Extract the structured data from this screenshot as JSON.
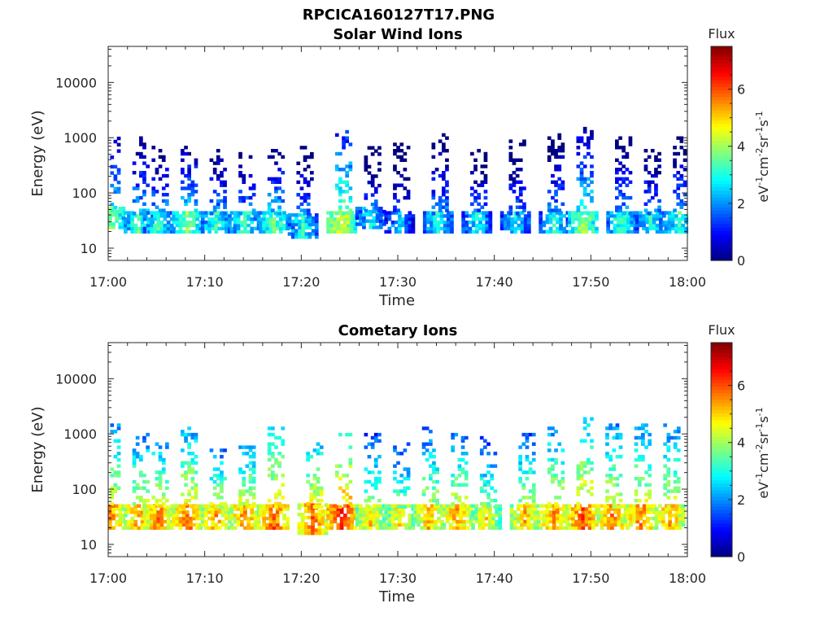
{
  "figure": {
    "title": "RPCICA160127T17.PNG"
  },
  "colorscale": [
    "#00007f",
    "#0000ff",
    "#007fff",
    "#00ffff",
    "#7fff7f",
    "#ffff00",
    "#ff7f00",
    "#ff0000",
    "#7f0000"
  ],
  "chart_data": [
    {
      "type": "heatmap",
      "title": "Solar Wind Ions",
      "xlabel": "Time",
      "ylabel": "Energy (eV)",
      "yscale": "log",
      "ylim": [
        6,
        45000
      ],
      "xlim": [
        "17:00",
        "18:00"
      ],
      "xticks": [
        "17:00",
        "17:10",
        "17:20",
        "17:30",
        "17:40",
        "17:50",
        "18:00"
      ],
      "yticks": [
        10,
        100,
        1000,
        10000
      ],
      "ytick_labels": [
        "10",
        "100",
        "1000",
        "10000"
      ],
      "colorbar": {
        "title": "Flux",
        "label": "eV-1cm-2sr-1s-1",
        "range": [
          0,
          7.5
        ],
        "ticks": [
          0,
          2,
          4,
          6
        ]
      },
      "bursts": [
        {
          "t": "17:00",
          "low": [
            30,
            45
          ],
          "high": [
            700,
            1100
          ],
          "flux": 4.5
        },
        {
          "t": "17:03",
          "low": [
            25,
            40
          ],
          "high": [
            300,
            1000
          ],
          "flux": 4.0
        },
        {
          "t": "17:05",
          "low": [
            25,
            40
          ],
          "high": [
            250,
            800
          ],
          "flux": 3.8
        },
        {
          "t": "17:08",
          "low": [
            25,
            40
          ],
          "high": [
            250,
            700
          ],
          "flux": 4.3
        },
        {
          "t": "17:11",
          "low": [
            25,
            40
          ],
          "high": [
            200,
            600
          ],
          "flux": 3.8
        },
        {
          "t": "17:14",
          "low": [
            25,
            40
          ],
          "high": [
            200,
            500
          ],
          "flux": 3.8
        },
        {
          "t": "17:17",
          "low": [
            25,
            40
          ],
          "high": [
            250,
            600
          ],
          "flux": 4.2
        },
        {
          "t": "17:20",
          "low": [
            20,
            35
          ],
          "high": [
            200,
            700
          ],
          "flux": 3.6
        },
        {
          "t": "17:24",
          "low": [
            25,
            40
          ],
          "high": [
            300,
            1500
          ],
          "flux": 5.2
        },
        {
          "t": "17:27",
          "low": [
            30,
            45
          ],
          "high": [
            250,
            700
          ],
          "flux": 3.4
        },
        {
          "t": "17:30",
          "low": [
            25,
            40
          ],
          "high": [
            200,
            800
          ],
          "flux": 3.0
        },
        {
          "t": "17:34",
          "low": [
            25,
            40
          ],
          "high": [
            300,
            1200
          ],
          "flux": 3.6
        },
        {
          "t": "17:38",
          "low": [
            25,
            40
          ],
          "high": [
            200,
            600
          ],
          "flux": 3.4
        },
        {
          "t": "17:42",
          "low": [
            25,
            40
          ],
          "high": [
            300,
            900
          ],
          "flux": 3.4
        },
        {
          "t": "17:46",
          "low": [
            25,
            40
          ],
          "high": [
            300,
            1200
          ],
          "flux": 3.6
        },
        {
          "t": "17:49",
          "low": [
            25,
            40
          ],
          "high": [
            300,
            1400
          ],
          "flux": 4.6
        },
        {
          "t": "17:53",
          "low": [
            25,
            40
          ],
          "high": [
            300,
            1000
          ],
          "flux": 3.8
        },
        {
          "t": "17:56",
          "low": [
            25,
            40
          ],
          "high": [
            300,
            700
          ],
          "flux": 3.6
        },
        {
          "t": "17:59",
          "low": [
            25,
            40
          ],
          "high": [
            300,
            1000
          ],
          "flux": 3.8
        }
      ]
    },
    {
      "type": "heatmap",
      "title": "Cometary Ions",
      "xlabel": "Time",
      "ylabel": "Energy (eV)",
      "yscale": "log",
      "ylim": [
        6,
        45000
      ],
      "xlim": [
        "17:00",
        "18:00"
      ],
      "xticks": [
        "17:00",
        "17:10",
        "17:20",
        "17:30",
        "17:40",
        "17:50",
        "18:00"
      ],
      "yticks": [
        10,
        100,
        1000,
        10000
      ],
      "ytick_labels": [
        "10",
        "100",
        "1000",
        "10000"
      ],
      "colorbar": {
        "title": "Flux",
        "label": "eV-1cm-2sr-1s-1",
        "range": [
          0,
          7.5
        ],
        "ticks": [
          0,
          2,
          4,
          6
        ]
      },
      "bursts": [
        {
          "t": "17:00",
          "low": [
            25,
            45
          ],
          "high": [
            150,
            1500
          ],
          "flux": 6.2
        },
        {
          "t": "17:03",
          "low": [
            25,
            45
          ],
          "high": [
            200,
            1000
          ],
          "flux": 6.0
        },
        {
          "t": "17:05",
          "low": [
            25,
            45
          ],
          "high": [
            200,
            800
          ],
          "flux": 6.2
        },
        {
          "t": "17:08",
          "low": [
            25,
            45
          ],
          "high": [
            250,
            1200
          ],
          "flux": 6.4
        },
        {
          "t": "17:11",
          "low": [
            25,
            45
          ],
          "high": [
            200,
            500
          ],
          "flux": 6.0
        },
        {
          "t": "17:14",
          "low": [
            25,
            45
          ],
          "high": [
            200,
            600
          ],
          "flux": 6.2
        },
        {
          "t": "17:17",
          "low": [
            25,
            45
          ],
          "high": [
            300,
            1500
          ],
          "flux": 6.5
        },
        {
          "t": "17:21",
          "low": [
            20,
            45
          ],
          "high": [
            200,
            800
          ],
          "flux": 6.4
        },
        {
          "t": "17:24",
          "low": [
            25,
            45
          ],
          "high": [
            300,
            1200
          ],
          "flux": 7.0
        },
        {
          "t": "17:27",
          "low": [
            25,
            45
          ],
          "high": [
            200,
            1000
          ],
          "flux": 5.6
        },
        {
          "t": "17:30",
          "low": [
            25,
            45
          ],
          "high": [
            150,
            800
          ],
          "flux": 5.4
        },
        {
          "t": "17:33",
          "low": [
            25,
            45
          ],
          "high": [
            200,
            1200
          ],
          "flux": 5.8
        },
        {
          "t": "17:36",
          "low": [
            25,
            45
          ],
          "high": [
            200,
            1000
          ],
          "flux": 6.0
        },
        {
          "t": "17:39",
          "low": [
            25,
            45
          ],
          "high": [
            200,
            900
          ],
          "flux": 5.4
        },
        {
          "t": "17:43",
          "low": [
            25,
            45
          ],
          "high": [
            200,
            1000
          ],
          "flux": 5.8
        },
        {
          "t": "17:46",
          "low": [
            25,
            45
          ],
          "high": [
            250,
            1200
          ],
          "flux": 6.2
        },
        {
          "t": "17:49",
          "low": [
            25,
            45
          ],
          "high": [
            300,
            1800
          ],
          "flux": 6.6
        },
        {
          "t": "17:52",
          "low": [
            25,
            45
          ],
          "high": [
            250,
            1400
          ],
          "flux": 6.2
        },
        {
          "t": "17:55",
          "low": [
            25,
            45
          ],
          "high": [
            250,
            1500
          ],
          "flux": 6.2
        },
        {
          "t": "17:58",
          "low": [
            25,
            45
          ],
          "high": [
            200,
            1500
          ],
          "flux": 6.0
        }
      ]
    }
  ]
}
